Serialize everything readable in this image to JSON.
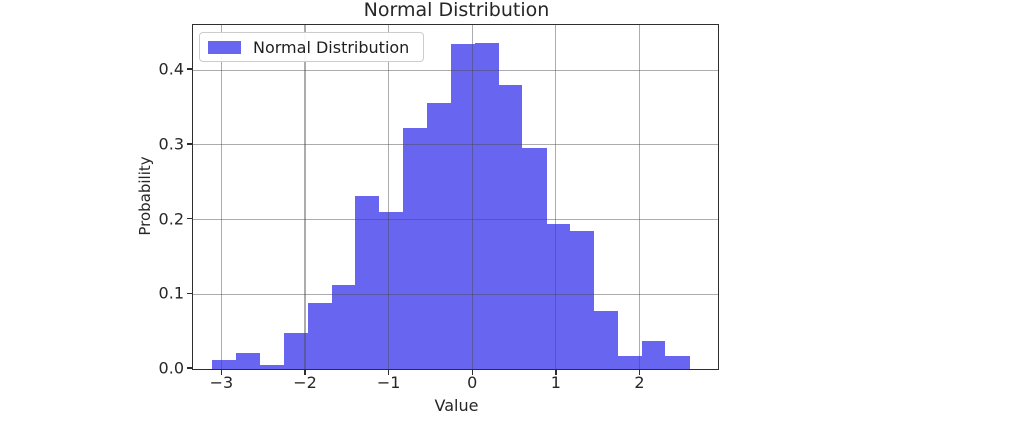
{
  "chart": {
    "legend": {
      "label": "Normal Distribution",
      "swatch_color": "#6866f1"
    },
    "colors": {
      "bar": "#6866f1",
      "grid": "rgba(70,70,70,0.45)",
      "spine": "#2e2e2e",
      "text": "#262626",
      "legend_border": "#cccccc"
    }
  },
  "chart_data": {
    "type": "bar",
    "subtype": "histogram",
    "title": "Normal Distribution",
    "xlabel": "Value",
    "ylabel": "Probability",
    "legend": [
      "Normal Distribution"
    ],
    "legend_position": "upper left",
    "grid": true,
    "xlim": [
      -3.34,
      2.94
    ],
    "ylim": [
      0,
      0.4605
    ],
    "x_ticks": [
      -3,
      -2,
      -1,
      0,
      1,
      2
    ],
    "x_tick_labels": [
      "−3",
      "−2",
      "−1",
      "0",
      "1",
      "2"
    ],
    "y_ticks": [
      0.0,
      0.1,
      0.2,
      0.3,
      0.4
    ],
    "y_tick_labels": [
      "0.0",
      "0.1",
      "0.2",
      "0.3",
      "0.4"
    ],
    "bin_edges": [
      -3.11,
      -2.82,
      -2.54,
      -2.25,
      -1.97,
      -1.68,
      -1.4,
      -1.11,
      -0.83,
      -0.54,
      -0.255,
      0.03,
      0.32,
      0.6,
      0.89,
      1.17,
      1.46,
      1.74,
      2.03,
      2.31,
      2.6
    ],
    "densities": [
      0.012,
      0.021,
      0.005,
      0.048,
      0.088,
      0.113,
      0.232,
      0.21,
      0.323,
      0.356,
      0.435,
      0.437,
      0.38,
      0.296,
      0.194,
      0.185,
      0.077,
      0.018,
      0.038,
      0.017
    ]
  }
}
